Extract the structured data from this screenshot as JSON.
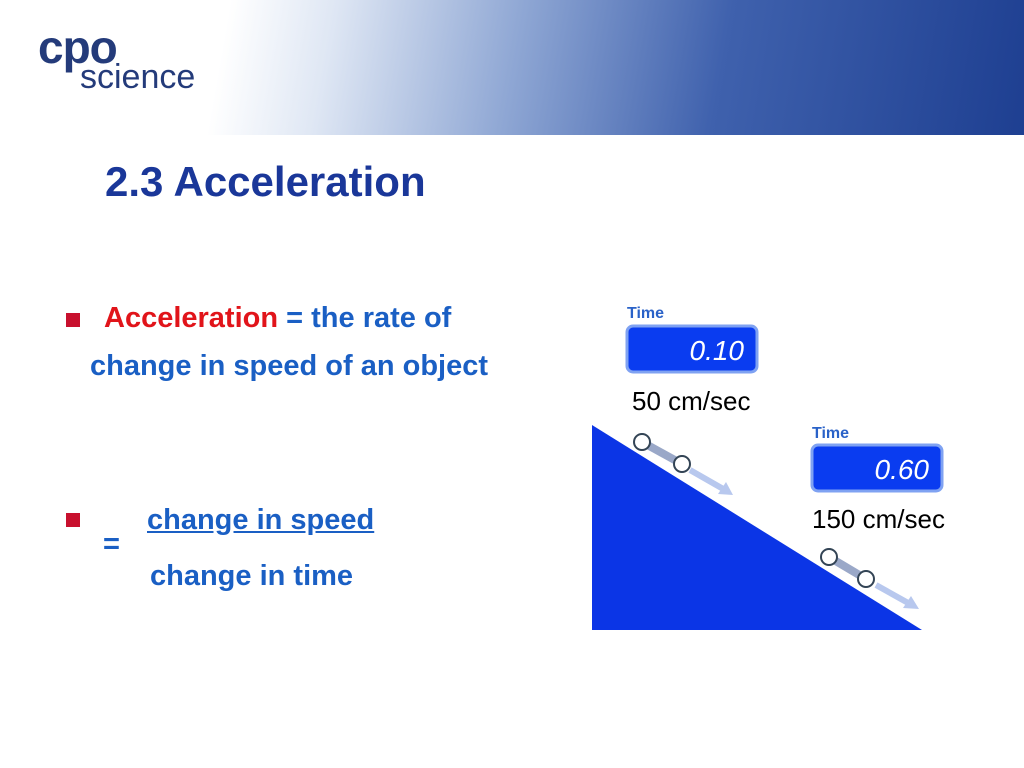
{
  "header": {
    "logo_top": "cpo",
    "logo_bottom": "science"
  },
  "title": "2.3 Acceleration",
  "bullets": [
    {
      "term": "Acceleration",
      "text": "= the rate of change in speed of an object"
    },
    {
      "operator": "=",
      "numerator": "change in speed",
      "denominator": "change in time"
    }
  ],
  "diagram": {
    "timers": [
      {
        "label": "Time",
        "display": "0.10",
        "speed": "50 cm/sec"
      },
      {
        "label": "Time",
        "display": "0.60",
        "speed": "150 cm/sec"
      }
    ]
  }
}
